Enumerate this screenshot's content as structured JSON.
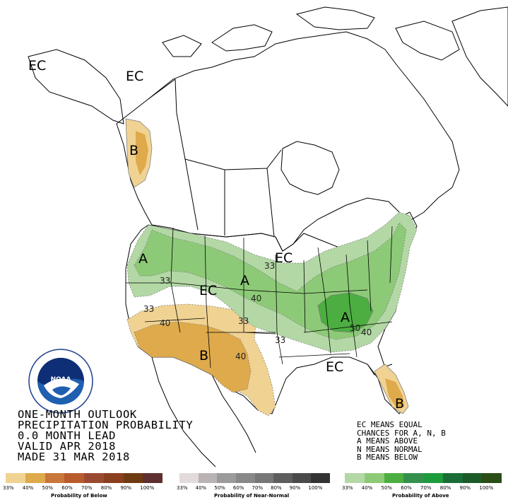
{
  "title_lines": [
    "ONE-MONTH OUTLOOK",
    "PRECIPITATION PROBABILITY",
    "0.0 MONTH LEAD",
    "VALID APR 2018",
    "MADE 31 MAR 2018"
  ],
  "legend_lines": [
    "EC MEANS EQUAL",
    "CHANCES FOR A, N, B",
    "A MEANS ABOVE",
    "N MEANS NORMAL",
    "B MEANS BELOW"
  ],
  "logo_text": "NOAA",
  "map_labels": {
    "ec_alaska_west": "EC",
    "ec_alaska_east": "EC",
    "b_panhandle": "B",
    "a_northwest": "A",
    "ec_southwest": "EC",
    "a_plains": "A",
    "ec_north": "EC",
    "a_ohio_valley": "A",
    "b_southwest": "B",
    "ec_south": "EC",
    "b_florida": "B"
  },
  "contour_labels": {
    "c33_nw": "33",
    "c33_plains": "33",
    "c40_plains": "40",
    "c33_sw": "33",
    "c40_sw": "40",
    "c33_nm": "33",
    "c40_tx": "40",
    "c33_mid": "33",
    "c50_ohio": "50",
    "c40_se": "40"
  },
  "scales": {
    "below": {
      "caption": "Probability of Below",
      "colors": [
        "#f0d393",
        "#deaa4b",
        "#c9773a",
        "#b85c2e",
        "#9b4a32",
        "#8a3f1f",
        "#6e3a12",
        "#5e3030"
      ],
      "ticks": [
        "33%",
        "40%",
        "50%",
        "60%",
        "70%",
        "80%",
        "90%",
        "100%"
      ]
    },
    "normal": {
      "caption": "Probability of Near-Normal",
      "colors": [
        "#e2dadb",
        "#b9b3b4",
        "#9b9b9b",
        "#888888",
        "#777777",
        "#5e5e5e",
        "#4a4a4a",
        "#333333"
      ],
      "ticks": [
        "33%",
        "40%",
        "50%",
        "60%",
        "70%",
        "80%",
        "90%",
        "100%"
      ]
    },
    "above": {
      "caption": "Probability of Above",
      "colors": [
        "#b3d8a5",
        "#8dca77",
        "#4cae41",
        "#35904d",
        "#1e9b3c",
        "#1a6d36",
        "#1c5a2a",
        "#2a4e16"
      ],
      "ticks": [
        "33%",
        "40%",
        "50%",
        "60%",
        "70%",
        "80%",
        "90%",
        "100%"
      ]
    }
  }
}
